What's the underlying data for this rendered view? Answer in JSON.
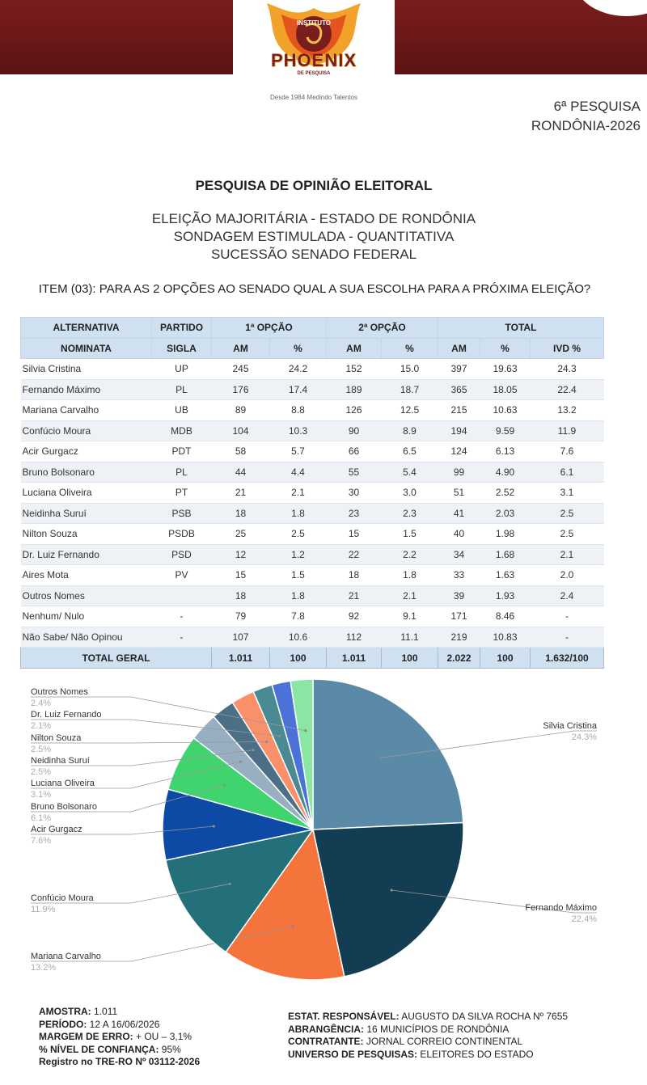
{
  "header": {
    "logo_top": "INSTITUTO",
    "logo_name": "PHOENIX",
    "logo_sub": "DE PESQUISA",
    "logo_slogan": "Desde 1984 Medindo Talentos",
    "edition": "6ª PESQUISA",
    "region": "RONDÔNIA-2026"
  },
  "titles": {
    "main": "PESQUISA DE OPINIÃO ELEITORAL",
    "line1": "ELEIÇÃO MAJORITÁRIA - ESTADO DE RONDÔNIA",
    "line2": "SONDAGEM ESTIMULADA - QUANTITATIVA",
    "line3": "SUCESSÃO SENADO FEDERAL",
    "item": "ITEM (03): PARA AS 2 OPÇÕES AO SENADO QUAL A SUA ESCOLHA PARA A PRÓXIMA ELEIÇÃO?"
  },
  "table": {
    "head1": [
      "ALTERNATIVA",
      "PARTIDO",
      "1ª OPÇÃO",
      "2ª OPÇÃO",
      "TOTAL"
    ],
    "head2": [
      "NOMINATA",
      "SIGLA",
      "AM",
      "%",
      "AM",
      "%",
      "AM",
      "%",
      "IVD %"
    ],
    "rows": [
      [
        "Silvia Cristina",
        "UP",
        "245",
        "24.2",
        "152",
        "15.0",
        "397",
        "19.63",
        "24.3"
      ],
      [
        "Fernando Máximo",
        "PL",
        "176",
        "17.4",
        "189",
        "18.7",
        "365",
        "18.05",
        "22.4"
      ],
      [
        "Mariana Carvalho",
        "UB",
        "89",
        "8.8",
        "126",
        "12.5",
        "215",
        "10.63",
        "13.2"
      ],
      [
        "Confúcio Moura",
        "MDB",
        "104",
        "10.3",
        "90",
        "8.9",
        "194",
        "9.59",
        "11.9"
      ],
      [
        "Acir Gurgacz",
        "PDT",
        "58",
        "5.7",
        "66",
        "6.5",
        "124",
        "6.13",
        "7.6"
      ],
      [
        "Bruno Bolsonaro",
        "PL",
        "44",
        "4.4",
        "55",
        "5.4",
        "99",
        "4.90",
        "6.1"
      ],
      [
        "Luciana Oliveira",
        "PT",
        "21",
        "2.1",
        "30",
        "3.0",
        "51",
        "2.52",
        "3.1"
      ],
      [
        "Neidinha Suruí",
        "PSB",
        "18",
        "1.8",
        "23",
        "2.3",
        "41",
        "2.03",
        "2.5"
      ],
      [
        "Nilton Souza",
        "PSDB",
        "25",
        "2.5",
        "15",
        "1.5",
        "40",
        "1.98",
        "2.5"
      ],
      [
        "Dr. Luiz Fernando",
        "PSD",
        "12",
        "1.2",
        "22",
        "2.2",
        "34",
        "1.68",
        "2.1"
      ],
      [
        "Aires Mota",
        "PV",
        "15",
        "1.5",
        "18",
        "1.8",
        "33",
        "1.63",
        "2.0"
      ],
      [
        "Outros Nomes",
        "",
        "18",
        "1.8",
        "21",
        "2.1",
        "39",
        "1.93",
        "2.4"
      ],
      [
        "Nenhum/ Nulo",
        "-",
        "79",
        "7.8",
        "92",
        "9.1",
        "171",
        "8.46",
        "-"
      ],
      [
        "Não Sabe/ Não Opinou",
        "-",
        "107",
        "10.6",
        "112",
        "11.1",
        "219",
        "10.83",
        "-"
      ]
    ],
    "total": [
      "TOTAL GERAL",
      "1.011",
      "100",
      "1.011",
      "100",
      "2.022",
      "100",
      "1.632/100"
    ]
  },
  "chart_data": {
    "type": "pie",
    "categories": [
      "Silvia Cristina",
      "Fernando Máximo",
      "Mariana Carvalho",
      "Confúcio Moura",
      "Acir Gurgacz",
      "Bruno Bolsonaro",
      "Luciana Oliveira",
      "Neidinha Suruí",
      "Nilton Souza",
      "Dr. Luiz Fernando",
      "Aires Mota",
      "Outros Nomes"
    ],
    "values": [
      24.3,
      22.4,
      13.2,
      11.9,
      7.6,
      6.1,
      3.1,
      2.5,
      2.5,
      2.1,
      2.0,
      2.4
    ],
    "labels": [
      "24.3%",
      "22.4%",
      "13.2%",
      "11.9%",
      "7.6%",
      "6.1%",
      "3.1%",
      "2.5%",
      "2.5%",
      "2.1%",
      "",
      "2.4%"
    ],
    "colors": [
      "#5b8aa8",
      "#123d52",
      "#f4743b",
      "#24707a",
      "#0d4aa5",
      "#3fd46e",
      "#98afc1",
      "#4a6f86",
      "#f99069",
      "#4a8a92",
      "#4a72d8",
      "#8ae6a3"
    ]
  },
  "footer": {
    "left": [
      {
        "k": "AMOSTRA:",
        "v": " 1.011"
      },
      {
        "k": "PERÍODO:",
        "v": " 12 A 16/06/2026"
      },
      {
        "k": "MARGEM DE ERRO:",
        "v": " + OU – 3,1%"
      },
      {
        "k": "% NÍVEL DE CONFIANÇA:",
        "v": " 95%"
      },
      {
        "k": "Registro no TRE-RO Nº 03112-2026",
        "v": ""
      }
    ],
    "right": [
      {
        "k": "ESTAT. RESPONSÁVEL:",
        "v": " AUGUSTO DA SILVA ROCHA Nº 7655"
      },
      {
        "k": "ABRANGÊNCIA:",
        "v": " 16 MUNICÍPIOS DE RONDÔNIA"
      },
      {
        "k": "CONTRATANTE:",
        "v": " JORNAL CORREIO CONTINENTAL"
      },
      {
        "k": "UNIVERSO DE PESQUISAS:",
        "v": " ELEITORES DO ESTADO"
      }
    ]
  }
}
